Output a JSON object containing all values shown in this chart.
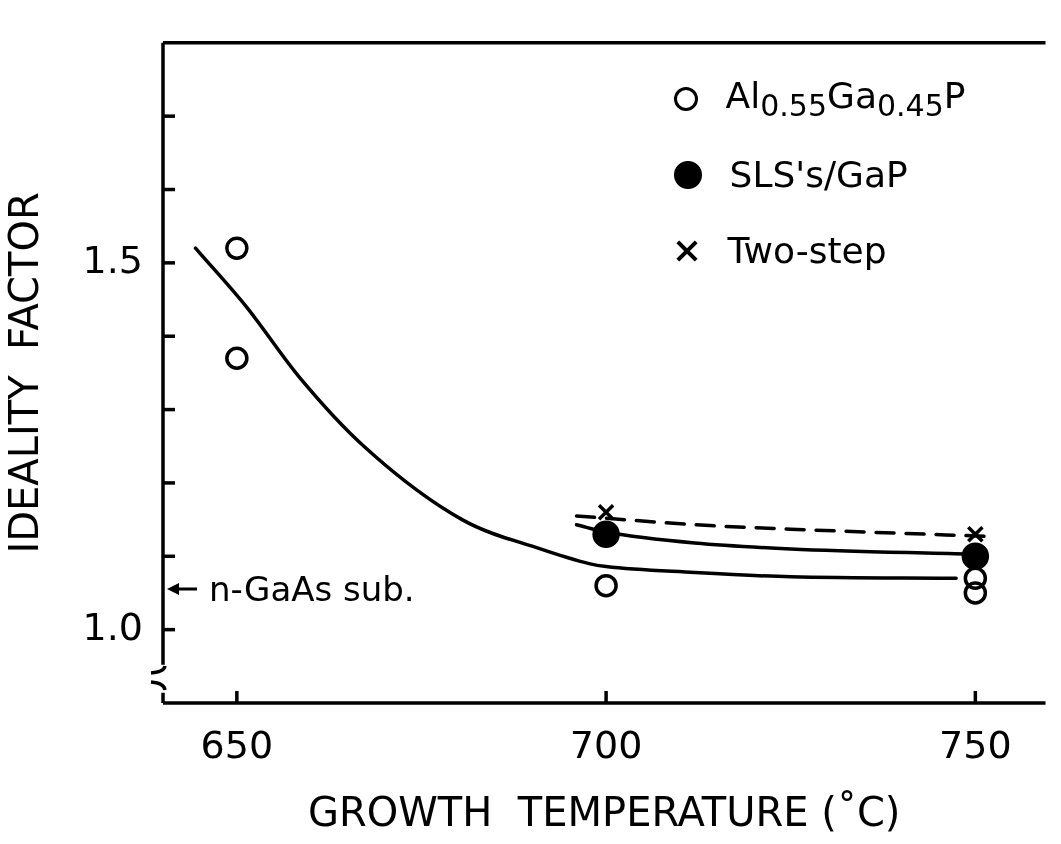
{
  "chart_data": {
    "type": "scatter",
    "xlabel": "GROWTH  TEMPERATURE (˚C)",
    "ylabel": "IDEALITY  FACTOR",
    "xlim": [
      640,
      759.5
    ],
    "xticks": [
      650,
      700,
      750
    ],
    "ylim": [
      0.9,
      1.8
    ],
    "yticks": [
      {
        "value": 1.0,
        "label": "1.0"
      },
      {
        "value": 1.1,
        "label": null
      },
      {
        "value": 1.2,
        "label": null
      },
      {
        "value": 1.3,
        "label": null
      },
      {
        "value": 1.4,
        "label": null
      },
      {
        "value": 1.5,
        "label": "1.5"
      },
      {
        "value": 1.6,
        "label": null
      },
      {
        "value": 1.7,
        "label": null
      }
    ],
    "grid": false,
    "legend": "top right",
    "annotations": [
      "n-GaAs sub."
    ],
    "series": [
      {
        "name": "Al$_{0.55}$Ga$_{0.45}$P",
        "marker": "circle",
        "color": "#000000",
        "x": [
          650,
          650,
          700,
          750,
          750
        ],
        "values": [
          1.52,
          1.37,
          1.06,
          1.07,
          1.05
        ]
      },
      {
        "name": "SLS's/GaP",
        "marker": "circle",
        "color": "#000000",
        "x": [
          700,
          750
        ],
        "values": [
          1.13,
          1.1
        ]
      },
      {
        "name": "Two-step",
        "marker": "cross",
        "color": "#000000",
        "x": [
          700,
          750
        ],
        "values": [
          1.16,
          1.13
        ]
      },
      {
        "type": "line",
        "marker": "none",
        "line_style": "solid",
        "color": "#000000",
        "x": [
          644.4,
          651.3,
          658.4,
          667.2,
          680.5,
          691.1,
          697.7,
          700,
          712,
          725,
          747.4
        ],
        "values": [
          1.52,
          1.44,
          1.345,
          1.25,
          1.15,
          1.11,
          1.09,
          1.086,
          1.078,
          1.072,
          1.07
        ]
      },
      {
        "type": "line",
        "marker": "none",
        "line_style": "solid",
        "color": "#000000",
        "x": [
          696,
          700,
          712,
          725,
          748.7
        ],
        "values": [
          1.143,
          1.133,
          1.118,
          1.11,
          1.103
        ]
      },
      {
        "type": "line",
        "marker": "none",
        "line_style": "dashed",
        "color": "#000000",
        "x": [
          696,
          712,
          725,
          752
        ],
        "values": [
          1.155,
          1.143,
          1.137,
          1.127
        ]
      }
    ]
  }
}
